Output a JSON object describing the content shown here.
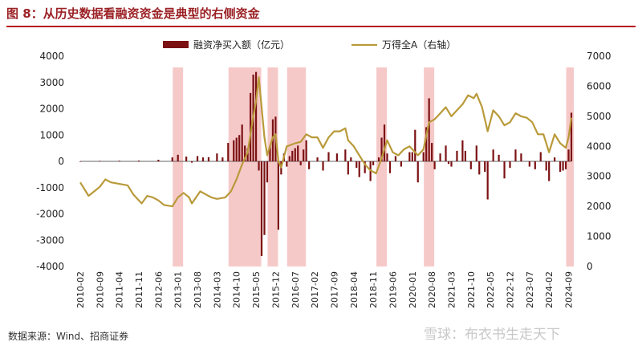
{
  "header": {
    "title": "图 8：从历史数据看融资资金是典型的右侧资金"
  },
  "footer": {
    "source": "数据来源：Wind、招商证券",
    "watermark": "雪球：布衣书生走天下"
  },
  "colors": {
    "bar": "#7b1113",
    "line": "#b99a3a",
    "shade": "#f6c9c9",
    "title": "#9b2226"
  },
  "chart_data": {
    "type": "bar",
    "title": "",
    "xlabel": "",
    "ylabel": "",
    "ylabel_right": "",
    "ylim": [
      -4000,
      4000
    ],
    "ylim_right": [
      0,
      7000
    ],
    "yticks_left": [
      "4000",
      "3000",
      "2000",
      "1000",
      "0",
      "-1000",
      "-2000",
      "-3000",
      "-4000"
    ],
    "yticks_right": [
      "7000",
      "6000",
      "5000",
      "4000",
      "3000",
      "2000",
      "1000",
      "0"
    ],
    "x_tick_labels": [
      "2010-02",
      "2010-09",
      "2011-04",
      "2011-11",
      "2012-06",
      "2013-01",
      "2013-08",
      "2014-03",
      "2014-10",
      "2015-05",
      "2015-12",
      "2016-07",
      "2017-02",
      "2017-09",
      "2018-04",
      "2018-11",
      "2019-06",
      "2020-01",
      "2020-08",
      "2021-03",
      "2021-10",
      "2022-05",
      "2022-12",
      "2023-07",
      "2024-02",
      "2024-09"
    ],
    "legend_position": "top-center",
    "series": [
      {
        "name": "融资净买入额（亿元）",
        "type": "bar",
        "axis": "left",
        "points": [
          [
            "2010-02",
            0
          ],
          [
            "2010-09",
            20
          ],
          [
            "2011-04",
            25
          ],
          [
            "2011-11",
            30
          ],
          [
            "2012-06",
            60
          ],
          [
            "2012-11",
            150
          ],
          [
            "2013-01",
            250
          ],
          [
            "2013-04",
            180
          ],
          [
            "2013-06",
            -50
          ],
          [
            "2013-08",
            200
          ],
          [
            "2013-10",
            150
          ],
          [
            "2013-12",
            160
          ],
          [
            "2014-03",
            300
          ],
          [
            "2014-05",
            150
          ],
          [
            "2014-07",
            700
          ],
          [
            "2014-09",
            800
          ],
          [
            "2014-10",
            900
          ],
          [
            "2014-11",
            1000
          ],
          [
            "2014-12",
            1400
          ],
          [
            "2015-01",
            600
          ],
          [
            "2015-02",
            500
          ],
          [
            "2015-03",
            2600
          ],
          [
            "2015-04",
            3300
          ],
          [
            "2015-05",
            3400
          ],
          [
            "2015-06",
            -350
          ],
          [
            "2015-07",
            -3600
          ],
          [
            "2015-08",
            -2800
          ],
          [
            "2015-09",
            -800
          ],
          [
            "2015-10",
            600
          ],
          [
            "2015-11",
            1600
          ],
          [
            "2015-12",
            1700
          ],
          [
            "2016-01",
            -2600
          ],
          [
            "2016-02",
            -500
          ],
          [
            "2016-03",
            300
          ],
          [
            "2016-04",
            -200
          ],
          [
            "2016-05",
            200
          ],
          [
            "2016-06",
            400
          ],
          [
            "2016-07",
            500
          ],
          [
            "2016-08",
            600
          ],
          [
            "2016-09",
            -150
          ],
          [
            "2016-10",
            450
          ],
          [
            "2016-11",
            800
          ],
          [
            "2016-12",
            -300
          ],
          [
            "2017-03",
            150
          ],
          [
            "2017-05",
            -350
          ],
          [
            "2017-07",
            350
          ],
          [
            "2017-10",
            300
          ],
          [
            "2018-01",
            450
          ],
          [
            "2018-02",
            -500
          ],
          [
            "2018-03",
            150
          ],
          [
            "2018-05",
            -250
          ],
          [
            "2018-06",
            -600
          ],
          [
            "2018-08",
            -450
          ],
          [
            "2018-10",
            -750
          ],
          [
            "2018-11",
            -150
          ],
          [
            "2019-01",
            150
          ],
          [
            "2019-02",
            900
          ],
          [
            "2019-03",
            1400
          ],
          [
            "2019-04",
            300
          ],
          [
            "2019-05",
            -450
          ],
          [
            "2019-07",
            200
          ],
          [
            "2019-09",
            -200
          ],
          [
            "2019-12",
            350
          ],
          [
            "2020-01",
            350
          ],
          [
            "2020-02",
            1200
          ],
          [
            "2020-03",
            -800
          ],
          [
            "2020-05",
            350
          ],
          [
            "2020-06",
            1300
          ],
          [
            "2020-07",
            2400
          ],
          [
            "2020-08",
            700
          ],
          [
            "2020-09",
            -300
          ],
          [
            "2020-11",
            300
          ],
          [
            "2021-01",
            600
          ],
          [
            "2021-02",
            -100
          ],
          [
            "2021-03",
            -200
          ],
          [
            "2021-05",
            400
          ],
          [
            "2021-07",
            800
          ],
          [
            "2021-08",
            400
          ],
          [
            "2021-10",
            -300
          ],
          [
            "2021-12",
            600
          ],
          [
            "2022-01",
            -500
          ],
          [
            "2022-03",
            -400
          ],
          [
            "2022-04",
            -1450
          ],
          [
            "2022-06",
            450
          ],
          [
            "2022-08",
            250
          ],
          [
            "2022-10",
            -650
          ],
          [
            "2022-12",
            -250
          ],
          [
            "2023-02",
            450
          ],
          [
            "2023-04",
            300
          ],
          [
            "2023-07",
            -200
          ],
          [
            "2023-09",
            -300
          ],
          [
            "2023-11",
            350
          ],
          [
            "2024-01",
            -350
          ],
          [
            "2024-02",
            -750
          ],
          [
            "2024-04",
            150
          ],
          [
            "2024-06",
            -400
          ],
          [
            "2024-07",
            -350
          ],
          [
            "2024-08",
            -300
          ],
          [
            "2024-09",
            450
          ],
          [
            "2024-10",
            1850
          ]
        ]
      },
      {
        "name": "万得全A（右轴）",
        "type": "line",
        "axis": "right",
        "points": [
          [
            "2010-02",
            2800
          ],
          [
            "2010-05",
            2350
          ],
          [
            "2010-07",
            2500
          ],
          [
            "2010-09",
            2650
          ],
          [
            "2010-11",
            2900
          ],
          [
            "2011-01",
            2800
          ],
          [
            "2011-04",
            2750
          ],
          [
            "2011-07",
            2700
          ],
          [
            "2011-09",
            2400
          ],
          [
            "2011-12",
            2100
          ],
          [
            "2012-02",
            2350
          ],
          [
            "2012-04",
            2300
          ],
          [
            "2012-06",
            2200
          ],
          [
            "2012-08",
            2050
          ],
          [
            "2012-11",
            2000
          ],
          [
            "2013-01",
            2300
          ],
          [
            "2013-03",
            2450
          ],
          [
            "2013-05",
            2300
          ],
          [
            "2013-06",
            2100
          ],
          [
            "2013-09",
            2500
          ],
          [
            "2013-11",
            2400
          ],
          [
            "2014-01",
            2300
          ],
          [
            "2014-03",
            2250
          ],
          [
            "2014-06",
            2300
          ],
          [
            "2014-08",
            2500
          ],
          [
            "2014-10",
            2900
          ],
          [
            "2014-12",
            3400
          ],
          [
            "2015-02",
            3800
          ],
          [
            "2015-04",
            5000
          ],
          [
            "2015-05",
            5500
          ],
          [
            "2015-06",
            6300
          ],
          [
            "2015-07",
            5300
          ],
          [
            "2015-08",
            4300
          ],
          [
            "2015-09",
            3700
          ],
          [
            "2015-11",
            4300
          ],
          [
            "2015-12",
            4400
          ],
          [
            "2016-01",
            3500
          ],
          [
            "2016-02",
            3300
          ],
          [
            "2016-04",
            4000
          ],
          [
            "2016-07",
            4100
          ],
          [
            "2016-09",
            4150
          ],
          [
            "2016-11",
            4400
          ],
          [
            "2017-01",
            4300
          ],
          [
            "2017-03",
            4300
          ],
          [
            "2017-05",
            3950
          ],
          [
            "2017-07",
            4300
          ],
          [
            "2017-09",
            4500
          ],
          [
            "2017-11",
            4500
          ],
          [
            "2018-01",
            4600
          ],
          [
            "2018-02",
            4200
          ],
          [
            "2018-04",
            4000
          ],
          [
            "2018-06",
            3700
          ],
          [
            "2018-08",
            3400
          ],
          [
            "2018-10",
            3200
          ],
          [
            "2018-12",
            3100
          ],
          [
            "2019-02",
            3600
          ],
          [
            "2019-04",
            4200
          ],
          [
            "2019-06",
            3800
          ],
          [
            "2019-08",
            3700
          ],
          [
            "2019-10",
            3900
          ],
          [
            "2019-12",
            4000
          ],
          [
            "2020-01",
            3900
          ],
          [
            "2020-03",
            3700
          ],
          [
            "2020-05",
            3900
          ],
          [
            "2020-07",
            4800
          ],
          [
            "2020-09",
            4900
          ],
          [
            "2020-11",
            5100
          ],
          [
            "2021-01",
            5300
          ],
          [
            "2021-03",
            5000
          ],
          [
            "2021-05",
            5200
          ],
          [
            "2021-07",
            5400
          ],
          [
            "2021-09",
            5700
          ],
          [
            "2021-11",
            5600
          ],
          [
            "2021-12",
            5750
          ],
          [
            "2022-02",
            5300
          ],
          [
            "2022-04",
            4500
          ],
          [
            "2022-06",
            5200
          ],
          [
            "2022-08",
            5000
          ],
          [
            "2022-10",
            4700
          ],
          [
            "2022-12",
            4800
          ],
          [
            "2023-02",
            5100
          ],
          [
            "2023-04",
            5000
          ],
          [
            "2023-06",
            4950
          ],
          [
            "2023-08",
            4800
          ],
          [
            "2023-10",
            4400
          ],
          [
            "2023-12",
            4400
          ],
          [
            "2024-02",
            3800
          ],
          [
            "2024-04",
            4400
          ],
          [
            "2024-06",
            4100
          ],
          [
            "2024-08",
            3950
          ],
          [
            "2024-09",
            4300
          ],
          [
            "2024-10",
            4950
          ]
        ]
      }
    ],
    "highlight_periods": [
      [
        "2012-12",
        "2013-02"
      ],
      [
        "2014-08",
        "2015-06"
      ],
      [
        "2015-10",
        "2015-12"
      ],
      [
        "2016-05",
        "2016-10"
      ],
      [
        "2019-01",
        "2019-03"
      ],
      [
        "2020-06",
        "2020-08"
      ],
      [
        "2024-09",
        "2024-10"
      ]
    ]
  }
}
